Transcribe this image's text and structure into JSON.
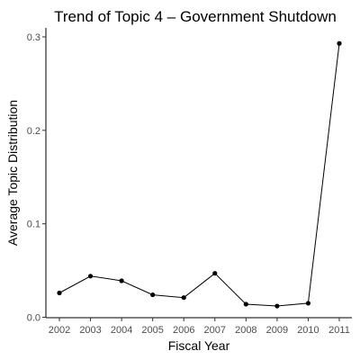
{
  "chart_data": {
    "type": "line",
    "title": "Trend of Topic 4 – Government Shutdown",
    "xlabel": "Fiscal Year",
    "ylabel": "Average Topic Distribution",
    "x": [
      "2002",
      "2003",
      "2004",
      "2005",
      "2006",
      "2007",
      "2008",
      "2009",
      "2010",
      "2011"
    ],
    "values": [
      0.026,
      0.044,
      0.039,
      0.024,
      0.021,
      0.047,
      0.014,
      0.012,
      0.015,
      0.293
    ],
    "ylim": [
      0,
      0.3
    ],
    "yticks": [
      "0.0",
      "0.1",
      "0.2",
      "0.3"
    ],
    "ytick_values": [
      0,
      0.1,
      0.2,
      0.3
    ],
    "grid": false,
    "line_color": "#000000",
    "point_color": "#000000"
  }
}
